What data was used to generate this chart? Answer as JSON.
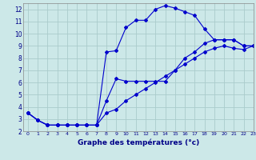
{
  "background_color": "#cce8e8",
  "grid_color": "#aacccc",
  "line_color": "#0000cc",
  "xlabel": "Graphe des températures (°c)",
  "xlim": [
    -0.5,
    23
  ],
  "ylim": [
    2,
    12.5
  ],
  "xticks": [
    0,
    1,
    2,
    3,
    4,
    5,
    6,
    7,
    8,
    9,
    10,
    11,
    12,
    13,
    14,
    15,
    16,
    17,
    18,
    19,
    20,
    21,
    22,
    23
  ],
  "yticks": [
    2,
    3,
    4,
    5,
    6,
    7,
    8,
    9,
    10,
    11,
    12
  ],
  "line1_x": [
    0,
    1,
    2,
    3,
    4,
    5,
    6,
    7,
    8,
    9,
    10,
    11,
    12,
    13,
    14,
    15,
    16,
    17,
    18,
    19,
    20,
    21,
    22,
    23
  ],
  "line1_y": [
    3.5,
    2.9,
    2.5,
    2.5,
    2.5,
    2.5,
    2.5,
    2.5,
    8.5,
    8.6,
    10.5,
    11.1,
    11.1,
    12.0,
    12.3,
    12.1,
    11.8,
    11.5,
    10.4,
    9.5,
    9.5,
    9.5,
    9.0,
    9.0
  ],
  "line2_x": [
    0,
    1,
    2,
    3,
    4,
    5,
    6,
    7,
    8,
    9,
    10,
    11,
    12,
    13,
    14,
    15,
    16,
    17,
    18,
    19,
    20,
    21,
    22,
    23
  ],
  "line2_y": [
    3.5,
    2.9,
    2.5,
    2.5,
    2.5,
    2.5,
    2.5,
    2.5,
    4.5,
    6.3,
    6.1,
    6.1,
    6.1,
    6.1,
    6.1,
    7.0,
    8.0,
    8.5,
    9.2,
    9.5,
    9.5,
    9.5,
    9.0,
    9.0
  ],
  "line3_x": [
    0,
    1,
    2,
    3,
    4,
    5,
    6,
    7,
    8,
    9,
    10,
    11,
    12,
    13,
    14,
    15,
    16,
    17,
    18,
    19,
    20,
    21,
    22,
    23
  ],
  "line3_y": [
    3.5,
    2.9,
    2.5,
    2.5,
    2.5,
    2.5,
    2.5,
    2.5,
    3.5,
    3.8,
    4.5,
    5.0,
    5.5,
    6.0,
    6.5,
    7.0,
    7.5,
    8.0,
    8.5,
    8.8,
    9.0,
    8.8,
    8.7,
    9.0
  ]
}
